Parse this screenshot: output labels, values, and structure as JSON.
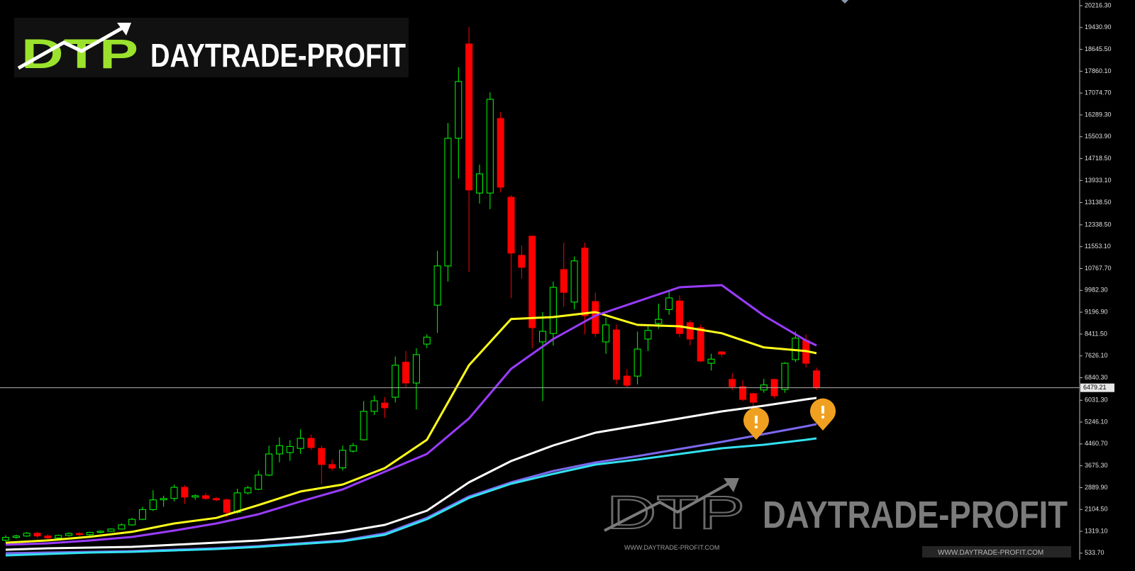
{
  "logo": {
    "mark": "DTP",
    "text": "DAYTRADE-PROFIT"
  },
  "watermark": {
    "mark": "DTP",
    "text": "DAYTRADE-PROFIT",
    "urls": [
      "WWW.DAYTRADE-PROFIT.COM",
      "WWW.DAYTRADE-PROFIT.COM"
    ]
  },
  "chart_data": {
    "type": "candlestick",
    "up_color": "#00ff00",
    "down_color": "#ff0000",
    "open": [
      1000,
      1100,
      1150,
      1250,
      1150,
      1080,
      1170,
      1240,
      1200,
      1280,
      1320,
      1400,
      1550,
      1750,
      2100,
      2450,
      2500,
      2900,
      2550,
      2600,
      2500,
      2450,
      2000,
      2700,
      2830,
      3340,
      4100,
      4150,
      4300,
      4660,
      4300,
      3720,
      3600,
      4200,
      4610,
      5630,
      5930,
      6140,
      7400,
      6650,
      8050,
      9450,
      10860,
      15450,
      18840,
      13480,
      13480,
      16160,
      13330,
      11240,
      11930,
      8130,
      8430,
      10730,
      9560,
      11500,
      9580,
      8130,
      8560,
      6900,
      6900,
      8230,
      8790,
      9290,
      9600,
      8820,
      8640,
      7360,
      7770,
      6780,
      6520,
      6270,
      6400,
      6780,
      6420,
      7490,
      8180,
      7090
    ],
    "high": [
      1180,
      1200,
      1290,
      1300,
      1220,
      1200,
      1280,
      1290,
      1300,
      1350,
      1420,
      1600,
      1800,
      2200,
      2800,
      2600,
      3000,
      2980,
      2650,
      2700,
      2550,
      2500,
      2850,
      2950,
      3500,
      4400,
      4700,
      4600,
      4980,
      4800,
      4400,
      3900,
      4400,
      4500,
      6000,
      6200,
      6150,
      7600,
      7800,
      7900,
      8400,
      11400,
      16000,
      18000,
      19450,
      14500,
      17100,
      16400,
      13400,
      11600,
      11950,
      9200,
      10300,
      11700,
      11200,
      11700,
      9900,
      9000,
      8750,
      7150,
      8500,
      8700,
      9500,
      9950,
      9800,
      8900,
      8750,
      7700,
      7800,
      7000,
      6750,
      6300,
      6800,
      6800,
      7400,
      8500,
      8400,
      7200
    ],
    "low": [
      950,
      1050,
      1120,
      1080,
      1000,
      1050,
      1130,
      1150,
      1160,
      1250,
      1300,
      1380,
      1520,
      1720,
      2050,
      2200,
      2400,
      2300,
      2450,
      2450,
      2400,
      1830,
      1950,
      2650,
      2800,
      3300,
      3800,
      3850,
      4100,
      4250,
      3000,
      3500,
      3500,
      4150,
      4580,
      5500,
      5400,
      5950,
      6500,
      5700,
      7900,
      8450,
      10300,
      14000,
      10640,
      13100,
      12900,
      13500,
      9700,
      10400,
      7900,
      6000,
      8000,
      9400,
      9300,
      8400,
      8300,
      7700,
      6600,
      6500,
      6600,
      7800,
      8600,
      9100,
      8300,
      8000,
      7400,
      7100,
      7600,
      6400,
      6000,
      5800,
      6300,
      6100,
      6300,
      7400,
      7200,
      6400
    ],
    "close": [
      1100,
      1150,
      1250,
      1150,
      1080,
      1170,
      1240,
      1200,
      1280,
      1320,
      1400,
      1550,
      1750,
      2100,
      2450,
      2500,
      2900,
      2550,
      2600,
      2500,
      2450,
      2000,
      2700,
      2880,
      3340,
      4100,
      4400,
      4370,
      4660,
      4330,
      3720,
      3590,
      4230,
      4400,
      5630,
      6010,
      5760,
      7290,
      6650,
      7670,
      8300,
      10860,
      15450,
      17490,
      13590,
      14170,
      16850,
      13690,
      11320,
      10810,
      8640,
      8510,
      10090,
      9910,
      11040,
      9070,
      8430,
      8740,
      6780,
      6570,
      7870,
      8540,
      8940,
      9710,
      8430,
      8230,
      7440,
      7510,
      7690,
      6520,
      6060,
      5960,
      6580,
      6190,
      7360,
      8260,
      7360,
      6479.21
    ],
    "overlays": [
      {
        "color": "#ffff1a",
        "x": [
          0,
          4,
          8,
          12,
          16,
          20,
          24,
          28,
          32,
          36,
          40,
          44,
          48,
          52,
          56,
          60,
          64,
          68,
          72,
          76,
          77
        ],
        "values": [
          910,
          990,
          1120,
          1300,
          1600,
          1800,
          2260,
          2750,
          3000,
          3590,
          4610,
          7290,
          8950,
          9020,
          9200,
          8740,
          8690,
          8440,
          7930,
          7800,
          7720
        ]
      },
      {
        "color": "#9a3cff",
        "x": [
          0,
          4,
          8,
          12,
          16,
          20,
          24,
          28,
          32,
          36,
          40,
          44,
          48,
          52,
          56,
          60,
          64,
          68,
          72,
          76,
          77
        ],
        "values": [
          836,
          887,
          989,
          1117,
          1346,
          1601,
          1933,
          2392,
          2825,
          3463,
          4100,
          5375,
          7160,
          8231,
          9073,
          9583,
          10093,
          10169,
          9073,
          8180,
          8002
        ]
      },
      {
        "color": "#ffffff",
        "x": [
          0,
          4,
          8,
          12,
          16,
          20,
          24,
          28,
          32,
          36,
          40,
          44,
          48,
          52,
          56,
          60,
          64,
          68,
          72,
          76,
          77
        ],
        "values": [
          658,
          709,
          734,
          760,
          836,
          912,
          989,
          1117,
          1295,
          1550,
          2060,
          3080,
          3845,
          4406,
          4865,
          5120,
          5375,
          5630,
          5834,
          6064,
          6115
        ]
      },
      {
        "color": "#7b68ee",
        "x": [
          0,
          4,
          8,
          12,
          16,
          20,
          24,
          28,
          32,
          36,
          40,
          44,
          48,
          52,
          56,
          60,
          64,
          68,
          72,
          76,
          77
        ],
        "values": [
          530,
          556,
          581,
          607,
          658,
          709,
          785,
          887,
          989,
          1244,
          1805,
          2570,
          3080,
          3488,
          3794,
          4024,
          4278,
          4534,
          4814,
          5094,
          5171
        ]
      },
      {
        "color": "#33e0f0",
        "x": [
          0,
          4,
          8,
          12,
          16,
          20,
          24,
          28,
          32,
          36,
          40,
          44,
          48,
          52,
          56,
          60,
          64,
          68,
          72,
          76,
          77
        ],
        "values": [
          454,
          505,
          556,
          581,
          632,
          683,
          760,
          862,
          964,
          1193,
          1754,
          2519,
          3029,
          3386,
          3718,
          3896,
          4100,
          4304,
          4432,
          4610,
          4661
        ]
      }
    ],
    "price_line": 6479.21,
    "ylim": [
      300,
      20420
    ],
    "yticks": [
      {
        "value": 20216.3,
        "label": "20216.30"
      },
      {
        "value": 19430.9,
        "label": "19430.90"
      },
      {
        "value": 18645.5,
        "label": "18645.50"
      },
      {
        "value": 17860.1,
        "label": "17860.10"
      },
      {
        "value": 17074.7,
        "label": "17074.70"
      },
      {
        "value": 16289.3,
        "label": "16289.30"
      },
      {
        "value": 15503.9,
        "label": "15503.90"
      },
      {
        "value": 14718.5,
        "label": "14718.50"
      },
      {
        "value": 13933.1,
        "label": "13933.10"
      },
      {
        "value": 13138.5,
        "label": "13138.50"
      },
      {
        "value": 12338.5,
        "label": "12338.50"
      },
      {
        "value": 11553.1,
        "label": "11553.10"
      },
      {
        "value": 10767.7,
        "label": "10767.70"
      },
      {
        "value": 9982.3,
        "label": "9982.30"
      },
      {
        "value": 9196.9,
        "label": "9196.90"
      },
      {
        "value": 8411.5,
        "label": "8411.50"
      },
      {
        "value": 7626.1,
        "label": "7626.10"
      },
      {
        "value": 6840.3,
        "label": "6840.30"
      },
      {
        "value": 6031.3,
        "label": "6031.30"
      },
      {
        "value": 5246.1,
        "label": "5246.10"
      },
      {
        "value": 4460.7,
        "label": "4460.70"
      },
      {
        "value": 3675.3,
        "label": "3675.30"
      },
      {
        "value": 2889.9,
        "label": "2889.90"
      },
      {
        "value": 2104.5,
        "label": "2104.50"
      },
      {
        "value": 1319.1,
        "label": "1319.10"
      },
      {
        "value": 533.7,
        "label": "533.70"
      }
    ],
    "grid": false
  }
}
